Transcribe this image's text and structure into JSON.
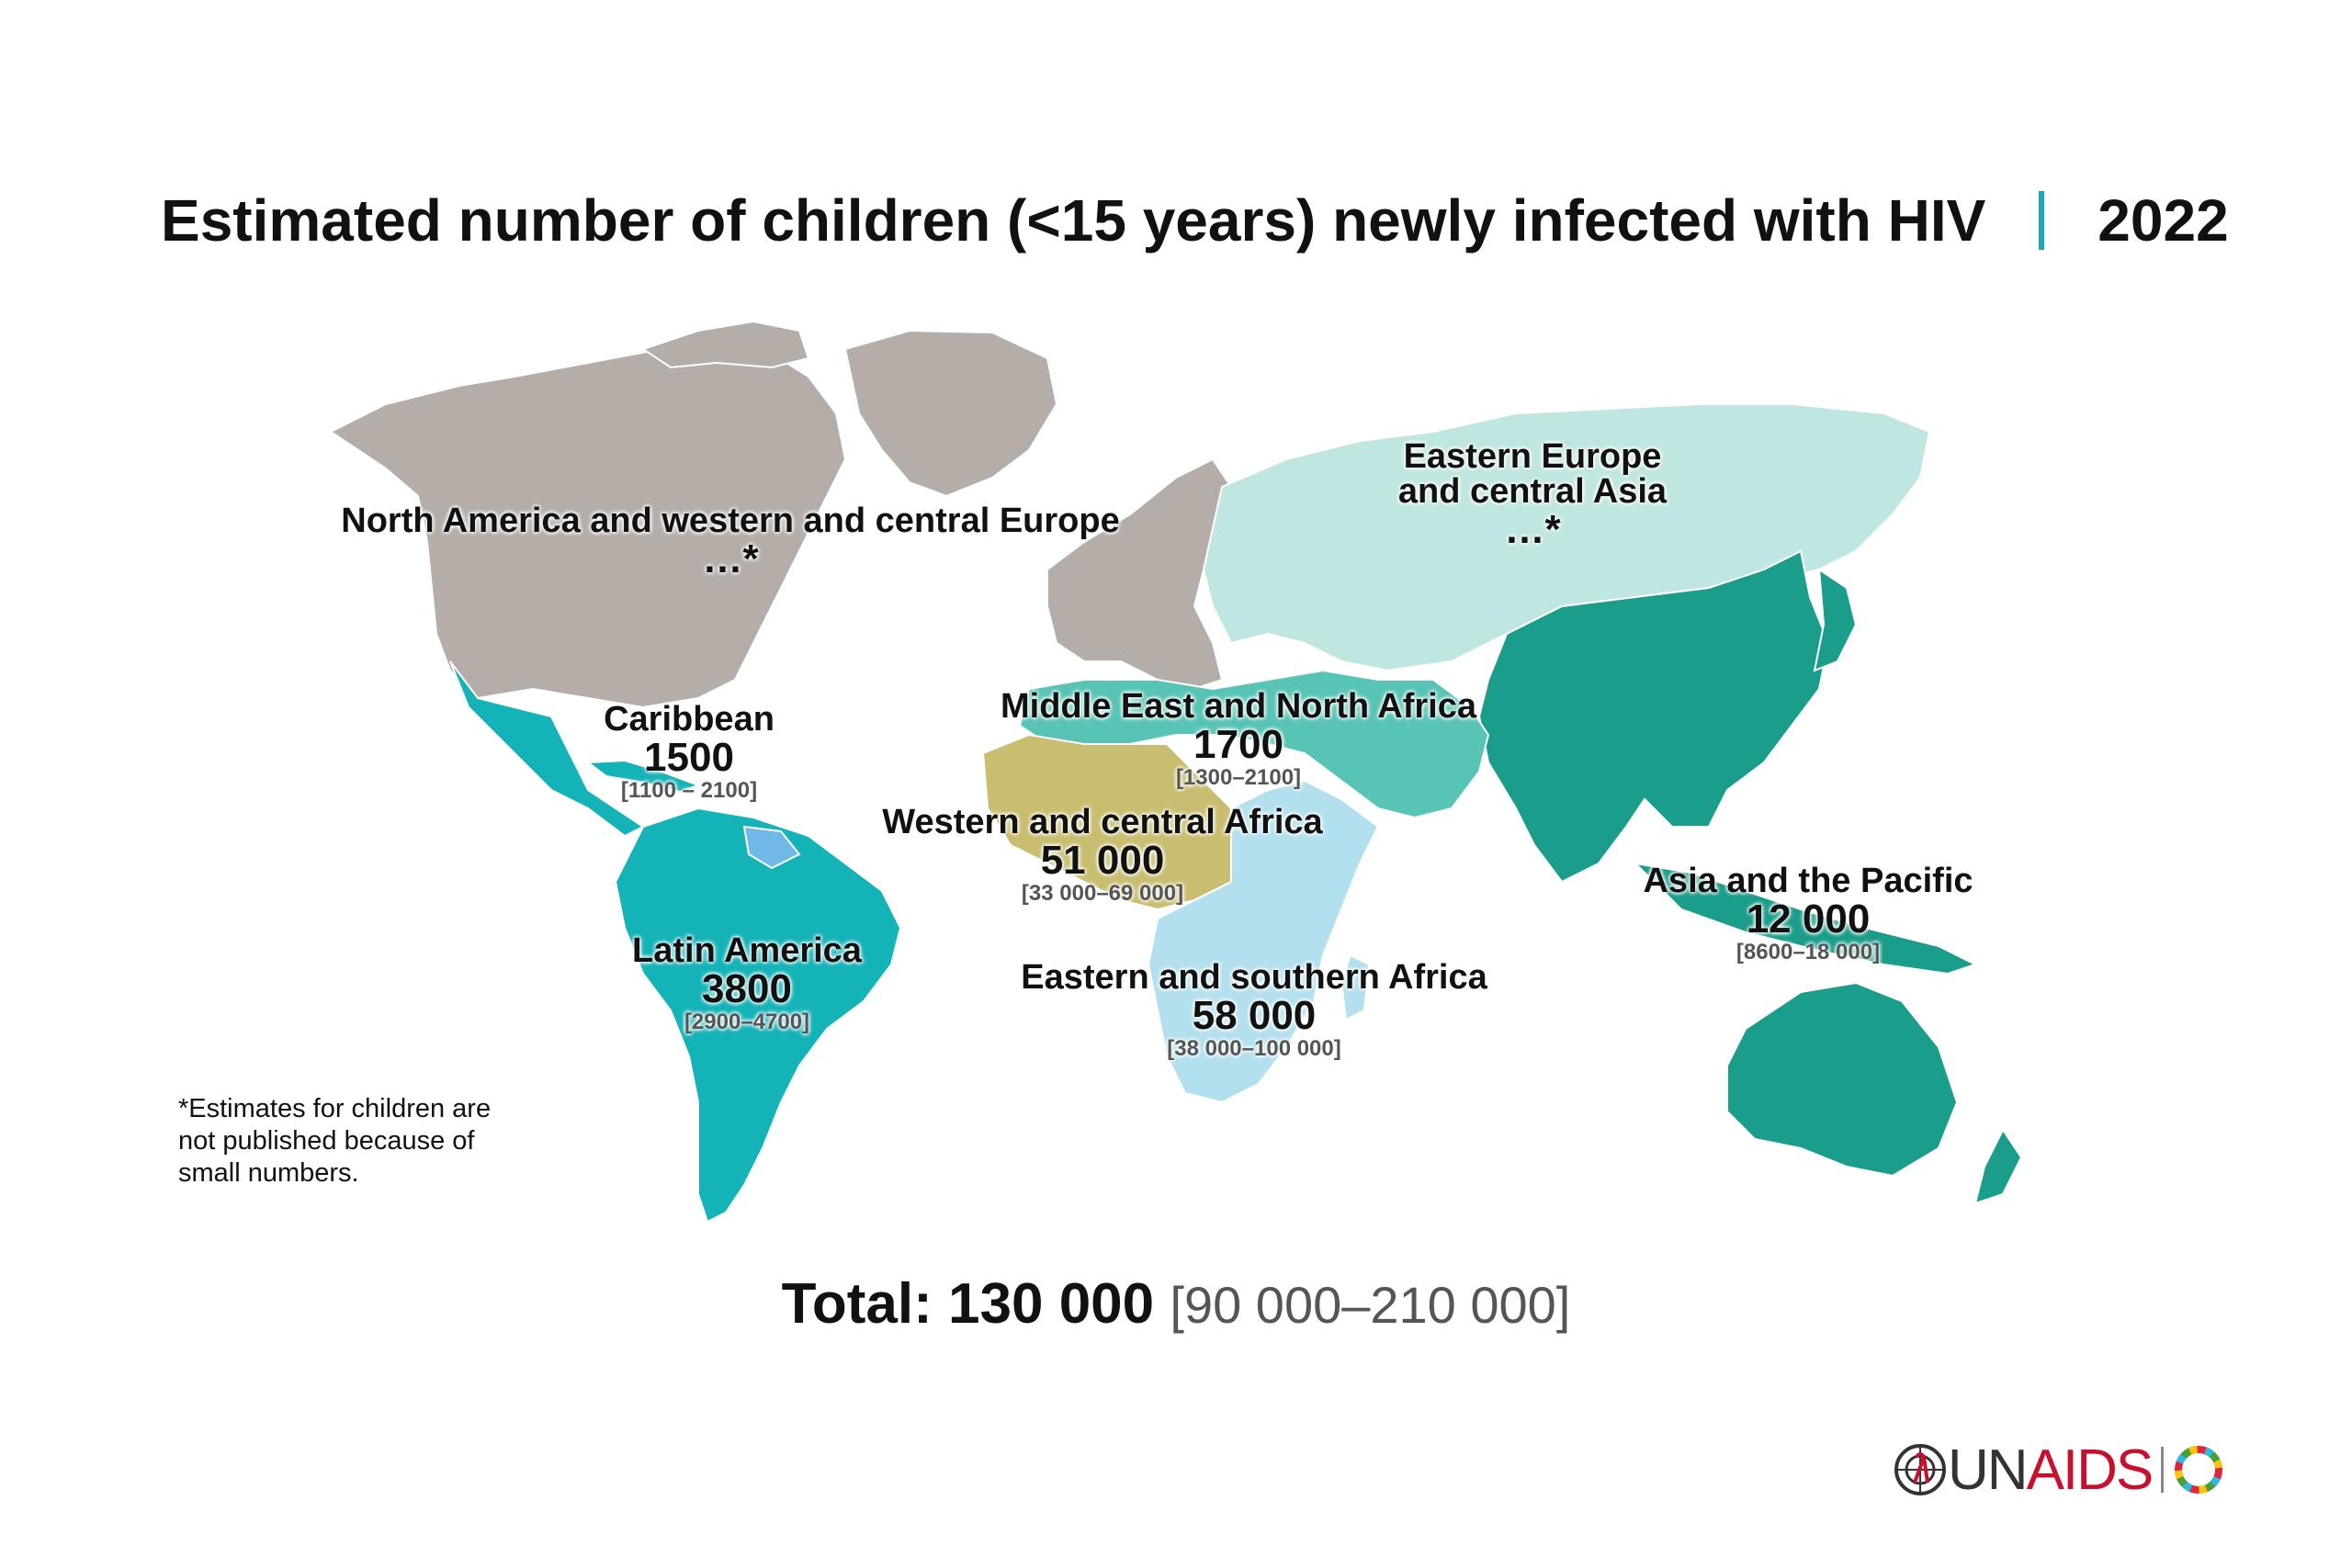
{
  "title": {
    "main": "Estimated number of children (<15 years) newly infected with HIV",
    "year": "2022"
  },
  "colors": {
    "na_europe": "#b5ada8",
    "eastern_europe_central_asia": "#bfe6e0",
    "asia_pacific": "#1a9d8a",
    "latin_america": "#14b3b8",
    "caribbean": "#14b3b8",
    "mena": "#58c4b6",
    "western_central_africa": "#c9bd6f",
    "eastern_southern_africa": "#b3e0ee",
    "accent": "#1aa9b3",
    "unaids_red": "#c8102e"
  },
  "regions": [
    {
      "id": "na-weu",
      "name": "North America and western and central Europe",
      "value": "…*",
      "range": ""
    },
    {
      "id": "eeca",
      "name": "Eastern Europe and central Asia",
      "name_line1": "Eastern Europe",
      "name_line2": "and central Asia",
      "value": "…*",
      "range": ""
    },
    {
      "id": "caribbean",
      "name": "Caribbean",
      "value": "1500",
      "range": "[1100 – 2100]"
    },
    {
      "id": "mena",
      "name": "Middle East and North Africa",
      "value": "1700",
      "range": "[1300–2100]"
    },
    {
      "id": "wca",
      "name": "Western and central Africa",
      "value": "51 000",
      "range": "[33 000–69 000]"
    },
    {
      "id": "latam",
      "name": "Latin America",
      "value": "3800",
      "range": "[2900–4700]"
    },
    {
      "id": "esa",
      "name": "Eastern and southern Africa",
      "value": "58 000",
      "range": "[38 000–100 000]"
    },
    {
      "id": "ap",
      "name": "Asia and the Pacific",
      "value": "12 000",
      "range": "[8600–18 000]"
    }
  ],
  "footnote": "*Estimates for children are not published because of small numbers.",
  "total": {
    "label": "Total:",
    "value": "130 000",
    "range": "[90 000–210 000]"
  },
  "logo": {
    "un": "UN",
    "aids": "AIDS",
    "icons": [
      "un-emblem-icon",
      "sdg-wheel-icon"
    ]
  }
}
